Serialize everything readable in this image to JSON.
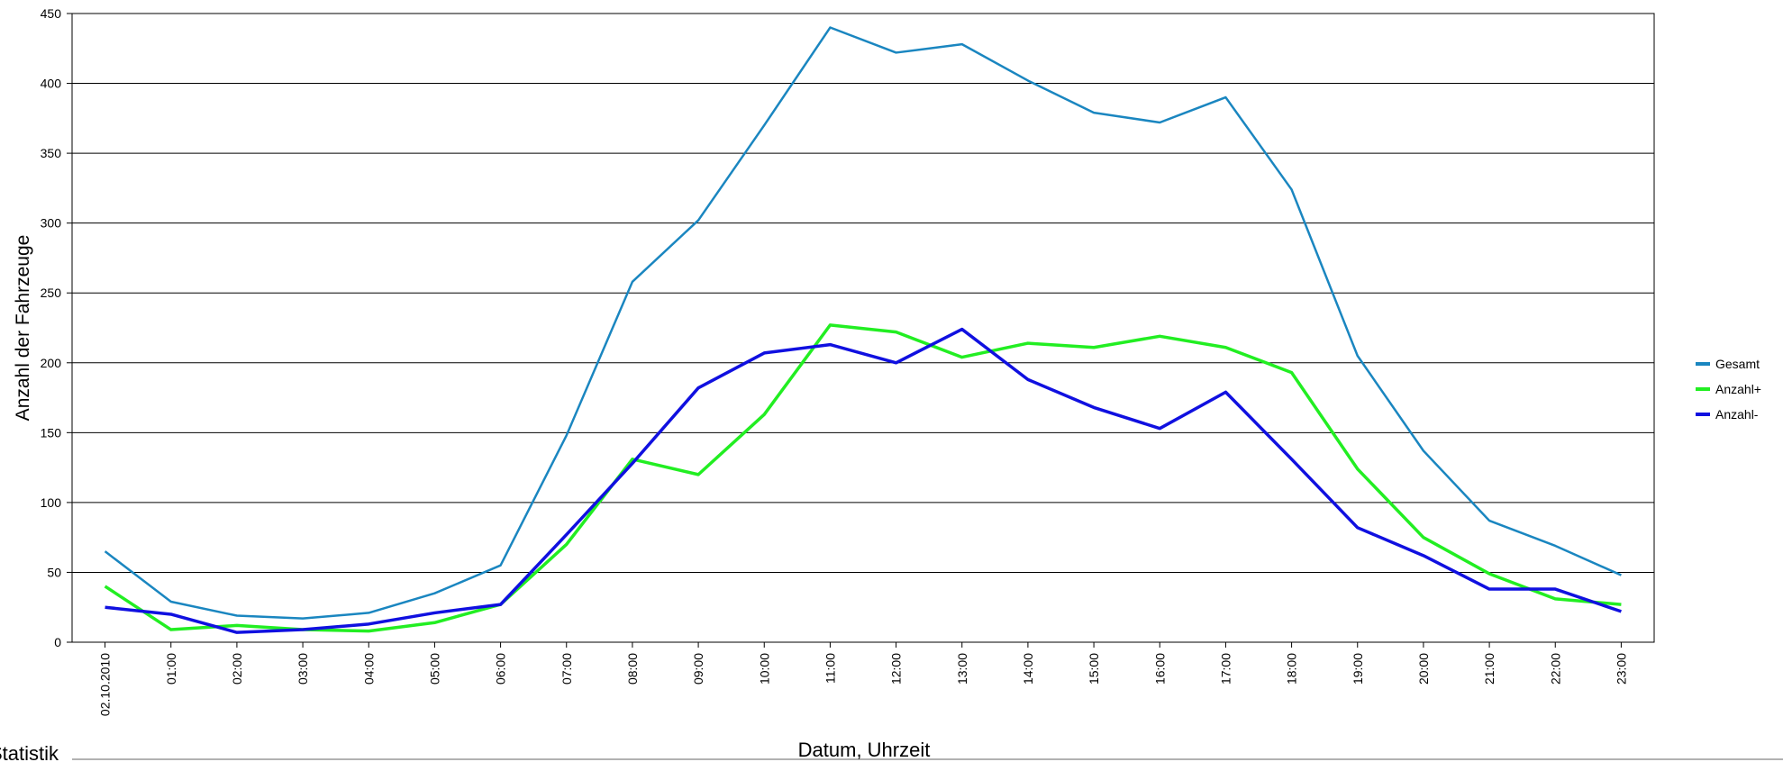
{
  "chart_data": {
    "type": "line",
    "x_label": "Datum, Uhrzeit",
    "y_label": "Anzahl der Fahrzeuge",
    "footer": "Statistik",
    "categories": [
      "02.10.2010",
      "01:00",
      "02:00",
      "03:00",
      "04:00",
      "05:00",
      "06:00",
      "07:00",
      "08:00",
      "09:00",
      "10:00",
      "11:00",
      "12:00",
      "13:00",
      "14:00",
      "15:00",
      "16:00",
      "17:00",
      "18:00",
      "19:00",
      "20:00",
      "21:00",
      "22:00",
      "23:00"
    ],
    "series": [
      {
        "name": "Gesamt",
        "color": "#1a86c0",
        "values": [
          65,
          29,
          19,
          17,
          21,
          35,
          55,
          148,
          258,
          302,
          370,
          440,
          422,
          428,
          402,
          379,
          372,
          390,
          324,
          205,
          137,
          87,
          69,
          48
        ]
      },
      {
        "name": "Anzahl+",
        "color": "#22ee22",
        "values": [
          40,
          9,
          12,
          9,
          8,
          14,
          27,
          70,
          131,
          120,
          163,
          227,
          222,
          204,
          214,
          211,
          219,
          211,
          193,
          124,
          75,
          49,
          31,
          27
        ]
      },
      {
        "name": "Anzahl-",
        "color": "#1010e0",
        "values": [
          25,
          20,
          7,
          9,
          13,
          21,
          27,
          77,
          128,
          182,
          207,
          213,
          200,
          224,
          188,
          168,
          153,
          179,
          131,
          82,
          62,
          38,
          38,
          22
        ]
      }
    ],
    "ylim": [
      0,
      450
    ],
    "yticks": [
      0,
      50,
      100,
      150,
      200,
      250,
      300,
      350,
      400,
      450
    ],
    "grid": true
  }
}
